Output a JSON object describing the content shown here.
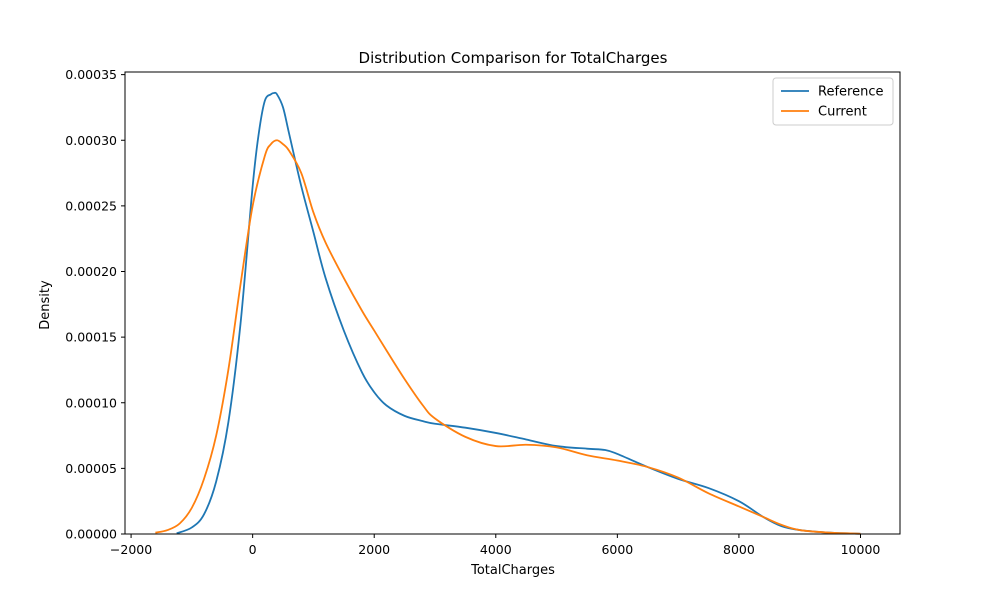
{
  "chart_data": {
    "type": "line",
    "title": "Distribution Comparison for TotalCharges",
    "xlabel": "TotalCharges",
    "ylabel": "Density",
    "xlim": [
      -2100,
      10650
    ],
    "ylim": [
      0,
      0.000352
    ],
    "xticks": [
      -2000,
      0,
      2000,
      4000,
      6000,
      8000,
      10000
    ],
    "xtick_labels": [
      "−2000",
      "0",
      "2000",
      "4000",
      "6000",
      "8000",
      "10000"
    ],
    "yticks": [
      0,
      5e-05,
      0.0001,
      0.00015,
      0.0002,
      0.00025,
      0.0003,
      0.00035
    ],
    "ytick_labels": [
      "0.00000",
      "0.00005",
      "0.00010",
      "0.00015",
      "0.00020",
      "0.00025",
      "0.00030",
      "0.00035"
    ],
    "grid": false,
    "legend_position": "top-right",
    "series": [
      {
        "name": "Reference",
        "color": "#1f77b4",
        "x": [
          -1250,
          -1000,
          -800,
          -600,
          -400,
          -200,
          0,
          100,
          200,
          300,
          350,
          400,
          500,
          600,
          800,
          1000,
          1200,
          1500,
          1800,
          2000,
          2200,
          2500,
          2800,
          3000,
          3500,
          4000,
          4500,
          5000,
          5500,
          5800,
          6000,
          6500,
          7000,
          7500,
          8000,
          8400,
          8700,
          9000,
          9500,
          10000
        ],
        "y": [
          5e-07,
          5e-06,
          1.5e-05,
          4e-05,
          8.5e-05,
          0.00016,
          0.000265,
          0.000305,
          0.00033,
          0.000335,
          0.000336,
          0.000335,
          0.000325,
          0.000305,
          0.000265,
          0.00023,
          0.000195,
          0.000155,
          0.000123,
          0.000108,
          9.8e-05,
          9e-05,
          8.6e-05,
          8.4e-05,
          8.1e-05,
          7.7e-05,
          7.2e-05,
          6.7e-05,
          6.5e-05,
          6.4e-05,
          6.1e-05,
          5.1e-05,
          4.2e-05,
          3.5e-05,
          2.5e-05,
          1.3e-05,
          6e-06,
          3e-06,
          1e-06,
          2e-07
        ]
      },
      {
        "name": "Current",
        "color": "#ff7f0e",
        "x": [
          -1600,
          -1400,
          -1200,
          -1000,
          -800,
          -600,
          -400,
          -200,
          0,
          200,
          300,
          400,
          500,
          600,
          800,
          1000,
          1200,
          1500,
          1800,
          2000,
          2200,
          2500,
          2800,
          3000,
          3500,
          4000,
          4500,
          5000,
          5500,
          6000,
          6500,
          7000,
          7500,
          8000,
          8400,
          8700,
          9000,
          9500,
          10000
        ],
        "y": [
          1e-06,
          3e-06,
          8e-06,
          2e-05,
          4.2e-05,
          7.5e-05,
          0.000125,
          0.00019,
          0.00025,
          0.000288,
          0.000297,
          0.0003,
          0.000297,
          0.000292,
          0.000275,
          0.000245,
          0.000222,
          0.000195,
          0.00017,
          0.000155,
          0.00014,
          0.000118,
          9.8e-05,
          8.8e-05,
          7.4e-05,
          6.7e-05,
          6.8e-05,
          6.6e-05,
          6e-05,
          5.6e-05,
          5.1e-05,
          4.3e-05,
          3.1e-05,
          2.1e-05,
          1.3e-05,
          7e-06,
          3e-06,
          1e-06,
          2e-07
        ]
      }
    ]
  }
}
